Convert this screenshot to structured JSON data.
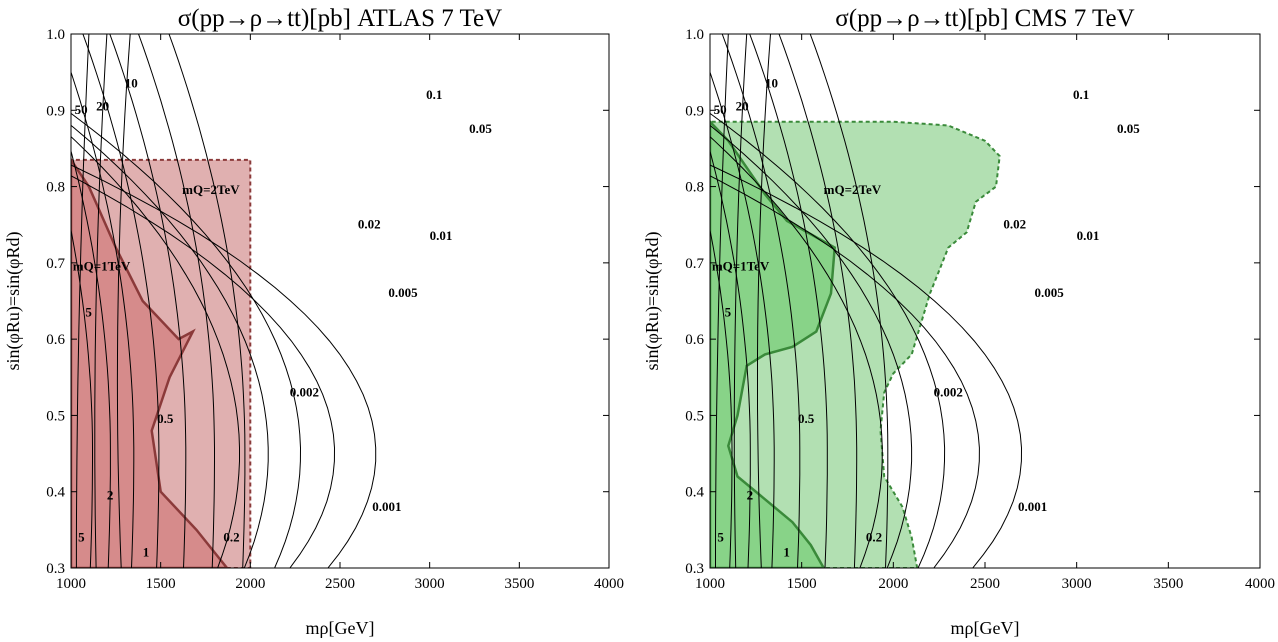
{
  "chart_data": [
    {
      "type": "contour",
      "title": "σ(pp→ρ→tt)[pb]  ATLAS 7 TeV",
      "xlabel": "mρ[GeV]",
      "ylabel": "sin(φRu)=sin(φRd)",
      "xlim": [
        1000,
        4000
      ],
      "ylim": [
        0.3,
        1.0
      ],
      "xticks": [
        "1000",
        "1500",
        "2000",
        "2500",
        "3000",
        "3500",
        "4000"
      ],
      "yticks": [
        "0.3",
        "0.4",
        "0.5",
        "0.6",
        "0.7",
        "0.8",
        "0.9",
        "1.0"
      ],
      "contour_levels": [
        "50",
        "20",
        "10",
        "5",
        "2",
        "1",
        "0.5",
        "0.2",
        "0.1",
        "0.05",
        "0.02",
        "0.01",
        "0.005",
        "0.002",
        "0.001"
      ],
      "contour_labels": [
        {
          "text": "50",
          "x": 1020,
          "y": 0.895
        },
        {
          "text": "20",
          "x": 1140,
          "y": 0.9
        },
        {
          "text": "10",
          "x": 1300,
          "y": 0.93
        },
        {
          "text": "5",
          "x": 1080,
          "y": 0.63
        },
        {
          "text": "5",
          "x": 1040,
          "y": 0.335
        },
        {
          "text": "2",
          "x": 1200,
          "y": 0.39
        },
        {
          "text": "1",
          "x": 1400,
          "y": 0.315
        },
        {
          "text": "0.5",
          "x": 1480,
          "y": 0.49
        },
        {
          "text": "0.2",
          "x": 1850,
          "y": 0.335
        },
        {
          "text": "0.1",
          "x": 2980,
          "y": 0.915
        },
        {
          "text": "0.05",
          "x": 3220,
          "y": 0.87
        },
        {
          "text": "0.02",
          "x": 2600,
          "y": 0.745
        },
        {
          "text": "0.01",
          "x": 3000,
          "y": 0.73
        },
        {
          "text": "0.005",
          "x": 2770,
          "y": 0.655
        },
        {
          "text": "0.002",
          "x": 2220,
          "y": 0.525
        },
        {
          "text": "0.001",
          "x": 2680,
          "y": 0.375
        }
      ],
      "regions": [
        {
          "label": "mQ=2TeV",
          "fill": "#e0b0b0",
          "stroke": "#8b3a3a",
          "dashed": true,
          "label_x": 1620,
          "label_y": 0.79,
          "boundary": [
            [
              1000,
              0.3
            ],
            [
              1000,
              0.835
            ],
            [
              2000,
              0.835
            ],
            [
              2000,
              0.3
            ]
          ]
        },
        {
          "label": "mQ=1TeV",
          "fill": "#d48585",
          "stroke": "#8b3a3a",
          "dashed": false,
          "label_x": 1010,
          "label_y": 0.69,
          "boundary": [
            [
              1000,
              0.3
            ],
            [
              1000,
              0.835
            ],
            [
              1100,
              0.8
            ],
            [
              1250,
              0.72
            ],
            [
              1400,
              0.65
            ],
            [
              1600,
              0.6
            ],
            [
              1680,
              0.61
            ],
            [
              1550,
              0.55
            ],
            [
              1450,
              0.48
            ],
            [
              1500,
              0.4
            ],
            [
              1700,
              0.35
            ],
            [
              1870,
              0.3
            ]
          ]
        }
      ]
    },
    {
      "type": "contour",
      "title": "σ(pp→ρ→tt)[pb]  CMS 7 TeV",
      "xlabel": "mρ[GeV]",
      "ylabel": "sin(φRu)=sin(φRd)",
      "xlim": [
        1000,
        4000
      ],
      "ylim": [
        0.3,
        1.0
      ],
      "xticks": [
        "1000",
        "1500",
        "2000",
        "2500",
        "3000",
        "3500",
        "4000"
      ],
      "yticks": [
        "0.3",
        "0.4",
        "0.5",
        "0.6",
        "0.7",
        "0.8",
        "0.9",
        "1.0"
      ],
      "contour_levels": [
        "50",
        "20",
        "10",
        "5",
        "2",
        "1",
        "0.5",
        "0.2",
        "0.1",
        "0.05",
        "0.02",
        "0.01",
        "0.005",
        "0.002",
        "0.001"
      ],
      "contour_labels": [
        {
          "text": "50",
          "x": 1020,
          "y": 0.895
        },
        {
          "text": "20",
          "x": 1140,
          "y": 0.9
        },
        {
          "text": "10",
          "x": 1300,
          "y": 0.93
        },
        {
          "text": "5",
          "x": 1080,
          "y": 0.63
        },
        {
          "text": "5",
          "x": 1040,
          "y": 0.335
        },
        {
          "text": "2",
          "x": 1200,
          "y": 0.39
        },
        {
          "text": "1",
          "x": 1400,
          "y": 0.315
        },
        {
          "text": "0.5",
          "x": 1480,
          "y": 0.49
        },
        {
          "text": "0.2",
          "x": 1850,
          "y": 0.335
        },
        {
          "text": "0.1",
          "x": 2980,
          "y": 0.915
        },
        {
          "text": "0.05",
          "x": 3220,
          "y": 0.87
        },
        {
          "text": "0.02",
          "x": 2600,
          "y": 0.745
        },
        {
          "text": "0.01",
          "x": 3000,
          "y": 0.73
        },
        {
          "text": "0.005",
          "x": 2770,
          "y": 0.655
        },
        {
          "text": "0.002",
          "x": 2220,
          "y": 0.525
        },
        {
          "text": "0.001",
          "x": 2680,
          "y": 0.375
        }
      ],
      "regions": [
        {
          "label": "mQ=2TeV",
          "fill": "#b2e0b2",
          "stroke": "#3a8a3a",
          "dashed": true,
          "label_x": 1620,
          "label_y": 0.79,
          "boundary": [
            [
              1000,
              0.3
            ],
            [
              1000,
              0.885
            ],
            [
              2000,
              0.885
            ],
            [
              2300,
              0.88
            ],
            [
              2500,
              0.86
            ],
            [
              2580,
              0.84
            ],
            [
              2560,
              0.8
            ],
            [
              2450,
              0.78
            ],
            [
              2400,
              0.74
            ],
            [
              2300,
              0.72
            ],
            [
              2250,
              0.69
            ],
            [
              2200,
              0.66
            ],
            [
              2150,
              0.62
            ],
            [
              2100,
              0.58
            ],
            [
              2000,
              0.555
            ],
            [
              1950,
              0.53
            ],
            [
              1930,
              0.48
            ],
            [
              1950,
              0.42
            ],
            [
              2050,
              0.38
            ],
            [
              2100,
              0.34
            ],
            [
              2130,
              0.3
            ]
          ]
        },
        {
          "label": "mQ=1TeV",
          "fill": "#80d080",
          "stroke": "#3a8a3a",
          "dashed": false,
          "label_x": 1010,
          "label_y": 0.69,
          "boundary": [
            [
              1000,
              0.3
            ],
            [
              1000,
              0.885
            ],
            [
              1100,
              0.86
            ],
            [
              1300,
              0.79
            ],
            [
              1420,
              0.755
            ],
            [
              1680,
              0.72
            ],
            [
              1660,
              0.66
            ],
            [
              1580,
              0.61
            ],
            [
              1450,
              0.59
            ],
            [
              1300,
              0.58
            ],
            [
              1200,
              0.565
            ],
            [
              1150,
              0.5
            ],
            [
              1100,
              0.46
            ],
            [
              1150,
              0.42
            ],
            [
              1300,
              0.39
            ],
            [
              1450,
              0.36
            ],
            [
              1550,
              0.33
            ],
            [
              1620,
              0.3
            ]
          ]
        }
      ]
    }
  ]
}
